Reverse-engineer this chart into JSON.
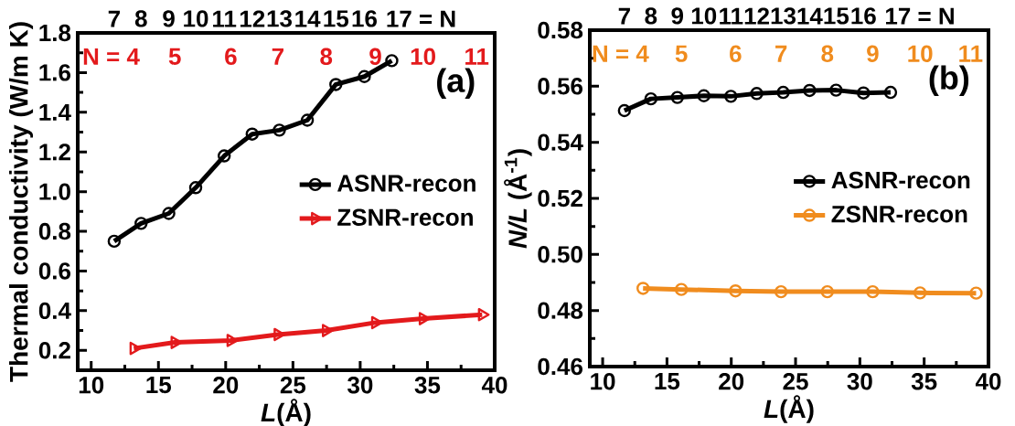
{
  "chart_data": [
    {
      "type": "line",
      "xlabel": "*L*(Å)",
      "ylabel": "Thermal conductivity (W/m K)",
      "xlim": [
        9,
        40
      ],
      "ylim": [
        0.1,
        1.8
      ],
      "xticks": [
        10,
        15,
        20,
        25,
        30,
        35,
        40
      ],
      "yticks": [
        {
          "value": 0.2,
          "label": "0.2"
        },
        {
          "value": 0.4,
          "label": "0.4"
        },
        {
          "value": 0.6,
          "label": "0.6"
        },
        {
          "value": 0.8,
          "label": "0.8"
        },
        {
          "value": 1.0,
          "label": "1.0"
        },
        {
          "value": 1.2,
          "label": "1.2"
        },
        {
          "value": 1.4,
          "label": "1.4"
        },
        {
          "value": 1.6,
          "label": "1.6"
        },
        {
          "value": 1.8,
          "label": "1.8"
        }
      ],
      "legend": "right",
      "annotations": [
        "(a)",
        "7",
        "8",
        "9",
        "10",
        "11",
        "12",
        "13",
        "14",
        "15",
        "16",
        "17 = N",
        "N = 4",
        "5",
        "6",
        "7",
        "8",
        "9",
        "10",
        "11"
      ],
      "series": [
        {
          "name": "ASNR-recon",
          "color": "#000000",
          "marker": "circle",
          "x": [
            11.71,
            13.71,
            15.77,
            17.77,
            19.89,
            21.97,
            23.99,
            26.07,
            28.19,
            30.31,
            32.35
          ],
          "values": [
            0.75,
            0.84,
            0.89,
            1.02,
            1.18,
            1.29,
            1.31,
            1.36,
            1.54,
            1.58,
            1.66
          ]
        },
        {
          "name": "ZSNR-recon",
          "color": "#e31a1c",
          "marker": "triangle",
          "x": [
            13.17,
            16.22,
            20.38,
            23.88,
            27.47,
            31.13,
            34.67,
            39.07
          ],
          "values": [
            0.21,
            0.24,
            0.25,
            0.28,
            0.3,
            0.34,
            0.36,
            0.38
          ]
        }
      ]
    },
    {
      "type": "line",
      "xlabel": "*L*(Å)",
      "ylabel": "*N/L* (Å$^{-1}$)",
      "xlim": [
        9,
        40
      ],
      "ylim": [
        0.46,
        0.58
      ],
      "xticks": [
        10,
        15,
        20,
        25,
        30,
        35,
        40
      ],
      "yticks": [
        {
          "value": 0.46,
          "label": "0.46"
        },
        {
          "value": 0.48,
          "label": "0.48"
        },
        {
          "value": 0.5,
          "label": "0.50"
        },
        {
          "value": 0.52,
          "label": "0.52"
        },
        {
          "value": 0.54,
          "label": "0.54"
        },
        {
          "value": 0.56,
          "label": "0.56"
        },
        {
          "value": 0.58,
          "label": "0.58"
        }
      ],
      "legend": "right",
      "annotations": [
        "(b)",
        "7",
        "8",
        "9",
        "10",
        "11",
        "12",
        "13",
        "14",
        "15",
        "16",
        "17 = N",
        "N = 4",
        "5",
        "6",
        "7",
        "8",
        "9",
        "10",
        "11"
      ],
      "series": [
        {
          "name": "ASNR-recon",
          "color": "#000000",
          "marker": "circle",
          "x": [
            11.69,
            13.75,
            15.81,
            17.87,
            19.97,
            21.98,
            24.04,
            26.09,
            28.15,
            30.28,
            32.39
          ],
          "values": [
            0.5513,
            0.5555,
            0.556,
            0.5566,
            0.5564,
            0.5574,
            0.5578,
            0.5585,
            0.5586,
            0.5576,
            0.5578
          ]
        },
        {
          "name": "ZSNR-recon",
          "color": "#f08c1e",
          "marker": "circle",
          "x": [
            13.14,
            16.12,
            20.33,
            23.87,
            27.47,
            31.0,
            34.68,
            39.04
          ],
          "values": [
            0.4879,
            0.4875,
            0.487,
            0.4867,
            0.4867,
            0.4867,
            0.4863,
            0.4862
          ]
        }
      ]
    }
  ]
}
